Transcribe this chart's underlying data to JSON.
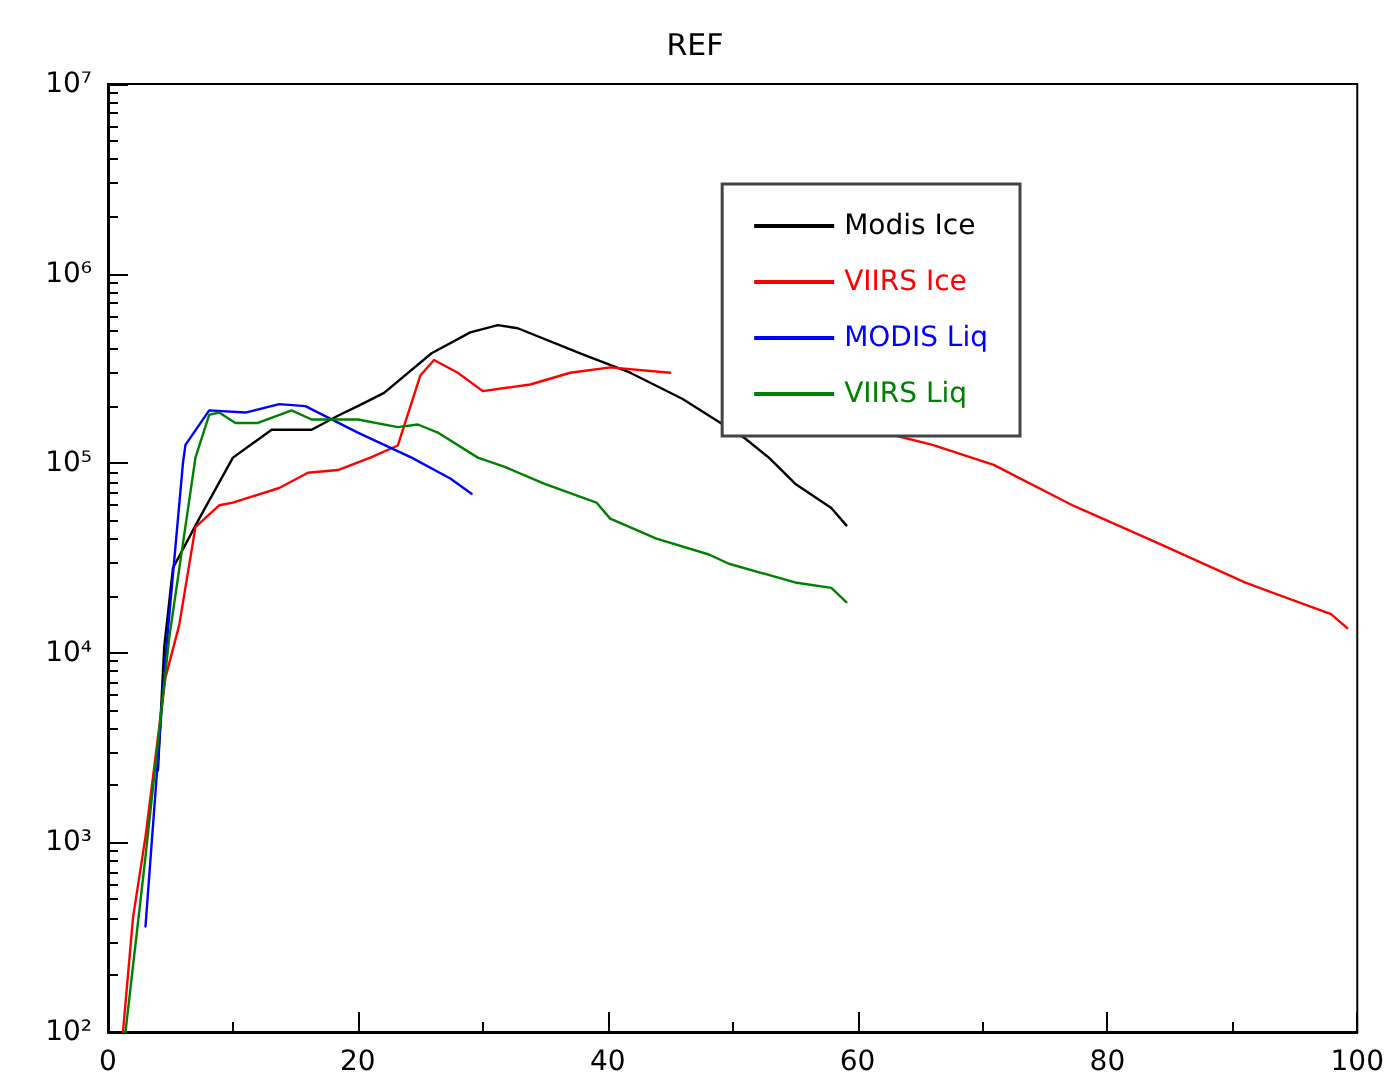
{
  "chart_data": {
    "type": "line",
    "title": "REF",
    "log": "y",
    "grid": false,
    "legend": "top right",
    "marker": "none",
    "line_style": "solid",
    "xlim": [
      0,
      100
    ],
    "xticks": [
      0,
      20,
      40,
      60,
      80,
      100
    ],
    "ylim": [
      100,
      10000000
    ],
    "yticks": [
      {
        "value": 100,
        "label": "10²"
      },
      {
        "value": 1000,
        "label": "10³"
      },
      {
        "value": 10000,
        "label": "10⁴"
      },
      {
        "value": 100000,
        "label": "10⁵"
      },
      {
        "value": 1000000,
        "label": "10⁶"
      },
      {
        "value": 10000000,
        "label": "10⁷"
      }
    ],
    "series": [
      {
        "name": "Modis Ice",
        "color": "#000000",
        "x": [
          4,
          4.5,
          5.2,
          7.3,
          10,
          13.1,
          16.3,
          18.4,
          20,
          22.1,
          25.9,
          29,
          31.2,
          32.8,
          38,
          41.8,
          46,
          51,
          52.9,
          55,
          57.9,
          59.1
        ],
        "values": [
          2400,
          10700,
          28000,
          51000,
          107000,
          150000,
          150000,
          178000,
          200000,
          235000,
          380000,
          490000,
          535000,
          515000,
          375000,
          300000,
          218000,
          135000,
          107000,
          78000,
          58000,
          47000
        ]
      },
      {
        "name": "VIIRS Ice",
        "color": "#ff0000",
        "x": [
          1.2,
          2,
          3,
          4.6,
          5.7,
          7,
          8.9,
          10,
          13.7,
          16,
          18.4,
          21,
          23.2,
          25,
          26.1,
          28,
          30,
          33.8,
          37,
          40.2,
          45,
          54,
          63,
          66,
          70.9,
          77.2,
          84,
          91,
          97.9,
          99.2
        ],
        "values": [
          100,
          400,
          1070,
          7400,
          14000,
          46000,
          60000,
          62000,
          74000,
          89000,
          92000,
          107000,
          124000,
          290000,
          350000,
          300000,
          240000,
          260000,
          300000,
          320000,
          300000,
          null,
          140000,
          125000,
          98000,
          60000,
          38000,
          23500,
          16000,
          13500
        ]
      },
      {
        "name": "MODIS Liq",
        "color": "#0000ff",
        "x": [
          3,
          4.6,
          6,
          6.2,
          8.1,
          11,
          13.7,
          15.8,
          20,
          24.3,
          27.4,
          29.1
        ],
        "values": [
          360,
          9400,
          100000,
          125000,
          190000,
          185000,
          205000,
          200000,
          145000,
          107000,
          83000,
          69000
        ]
      },
      {
        "name": "VIIRS Liq",
        "color": "#008000",
        "x": [
          1.4,
          3,
          4.9,
          7,
          8.1,
          8.9,
          10.2,
          12,
          14.7,
          16.3,
          20,
          23.2,
          24.8,
          26.4,
          29.6,
          31.7,
          34.9,
          39.1,
          40.2,
          43.9,
          48.1,
          49.7,
          55,
          57.9,
          59.1
        ],
        "values": [
          100,
          840,
          12000,
          107000,
          180000,
          185000,
          163000,
          163000,
          190000,
          170000,
          170000,
          155000,
          160000,
          145000,
          107000,
          96000,
          78000,
          62000,
          51000,
          40000,
          33000,
          29500,
          23500,
          22000,
          18500
        ]
      }
    ]
  }
}
